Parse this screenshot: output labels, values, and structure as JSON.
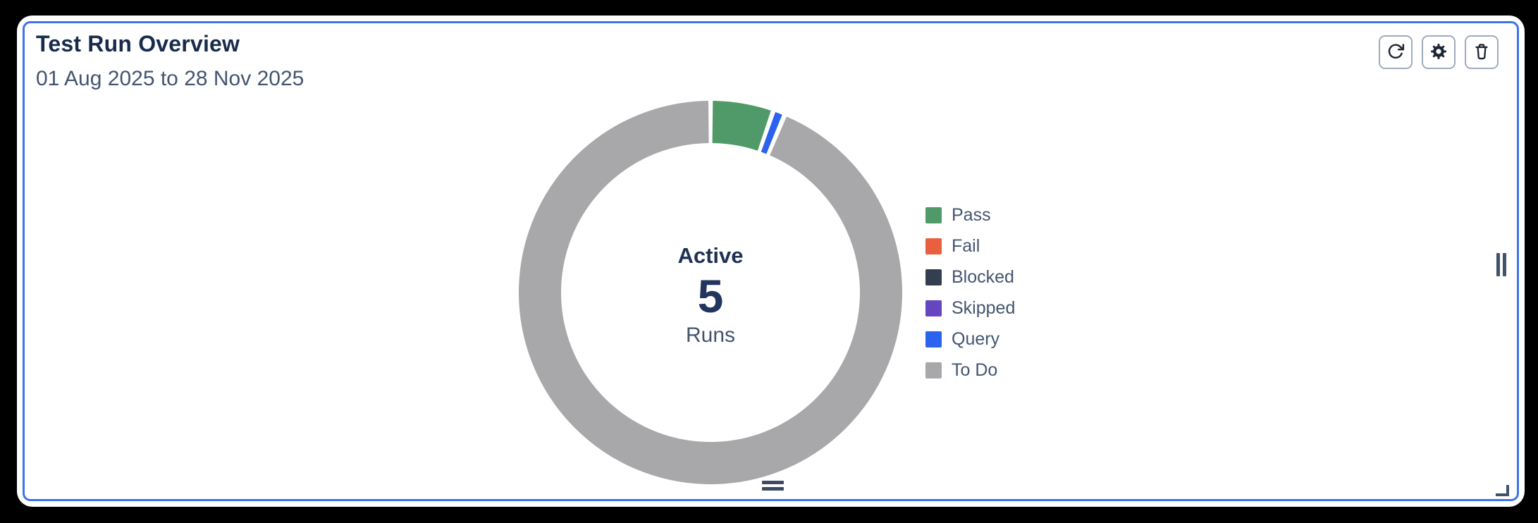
{
  "window": {
    "background_color": "#000000"
  },
  "card": {
    "title": "Test Run Overview",
    "subtitle": "01 Aug 2025 to 28 Nov 2025",
    "background_color": "#FFFFFF",
    "selection_border_color": "#3E74EC"
  },
  "toolbar": {
    "buttons": [
      {
        "icon": "refresh-icon"
      },
      {
        "icon": "settings-icon"
      },
      {
        "icon": "delete-icon"
      }
    ]
  },
  "chart_data": {
    "type": "pie",
    "subtype": "donut",
    "title": "Test Run Overview",
    "date_range": "01 Aug 2025 to 28 Nov 2025",
    "center": {
      "label": "Active",
      "value": "5",
      "sublabel": "Runs"
    },
    "legend_position": "right",
    "start_angle_deg": 0,
    "segments": [
      {
        "name": "Pass",
        "color": "#4F9A68",
        "percent": 5.3
      },
      {
        "name": "Fail",
        "color": "#E9603E",
        "percent": 0
      },
      {
        "name": "Blocked",
        "color": "#333E4F",
        "percent": 0
      },
      {
        "name": "Skipped",
        "color": "#6546C0",
        "percent": 0
      },
      {
        "name": "Query",
        "color": "#2B63EE",
        "percent": 1.0
      },
      {
        "name": "To Do",
        "color": "#A8A8AA",
        "percent": 93.7
      }
    ]
  },
  "text_colors": {
    "title": "#172B4D",
    "subtitle": "#44546F",
    "center_value": "#22355F"
  }
}
